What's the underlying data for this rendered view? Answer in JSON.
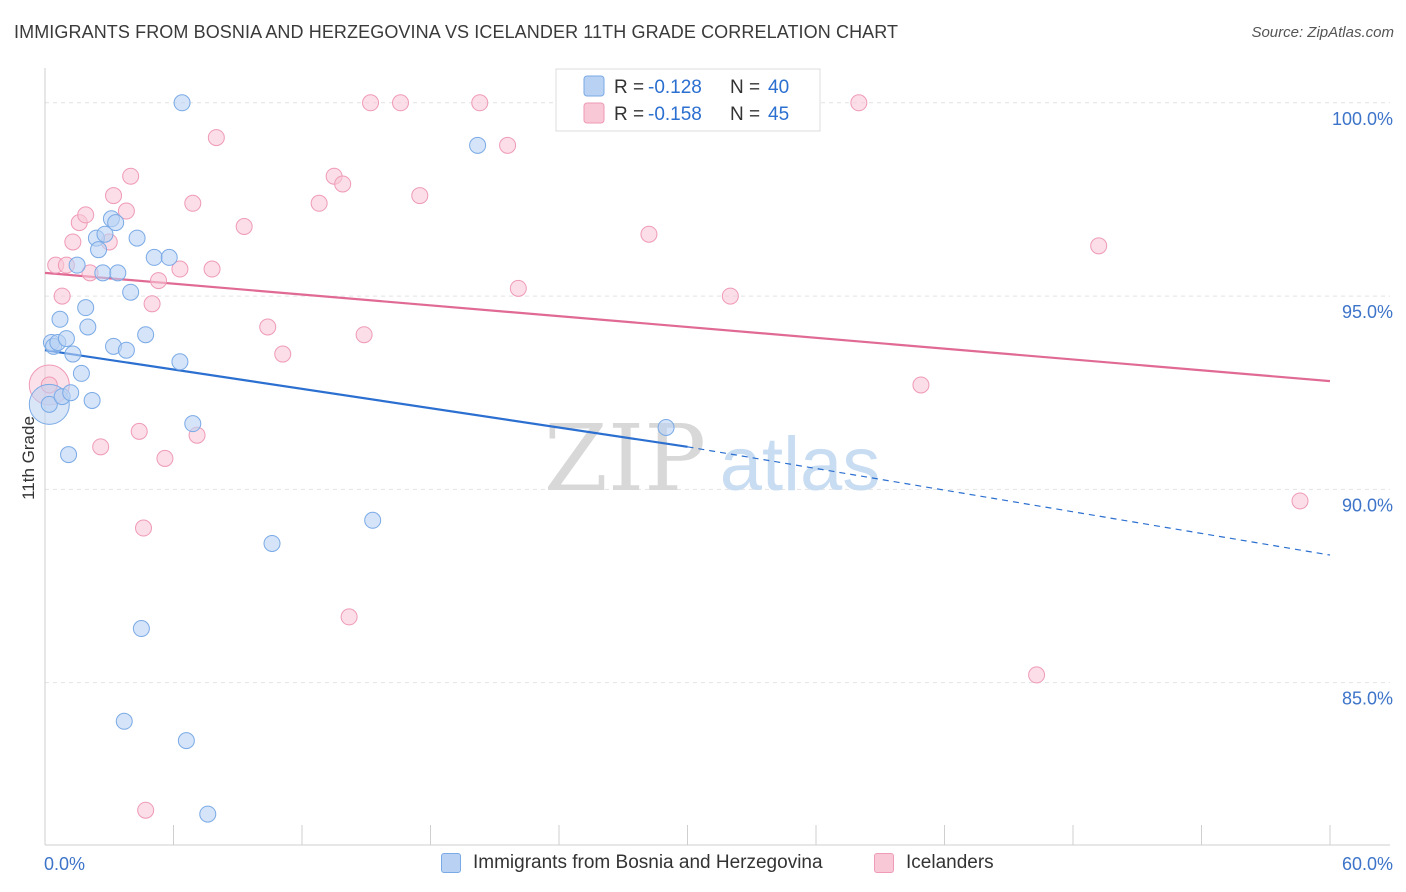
{
  "title": "IMMIGRANTS FROM BOSNIA AND HERZEGOVINA VS ICELANDER 11TH GRADE CORRELATION CHART",
  "source": "Source: ZipAtlas.com",
  "watermark": {
    "zip": "ZIP",
    "atlas": "atlas"
  },
  "chart_data": {
    "type": "scatter",
    "title": "IMMIGRANTS FROM BOSNIA AND HERZEGOVINA VS ICELANDER 11TH GRADE CORRELATION CHART",
    "xlabel": "",
    "ylabel": "11th Grade",
    "xlim": [
      0,
      60
    ],
    "ylim": [
      80.8,
      100.9
    ],
    "x_tick_labels": [
      {
        "value": 0,
        "label": "0.0%"
      },
      {
        "value": 60,
        "label": "60.0%"
      }
    ],
    "y_tick_labels": [
      {
        "value": 100,
        "label": "100.0%"
      },
      {
        "value": 95,
        "label": "95.0%"
      },
      {
        "value": 90,
        "label": "90.0%"
      },
      {
        "value": 85,
        "label": "85.0%"
      }
    ],
    "x_minor_ticks": [
      0,
      6,
      12,
      18,
      24,
      30,
      36,
      42,
      48,
      54,
      60
    ],
    "grid": true,
    "series": [
      {
        "name": "Immigrants from Bosnia and Herzegovina",
        "color": "#7aaae6",
        "fill": "#b9d2f3",
        "line_color": "#2b6fd0",
        "R": "-0.128",
        "N": "40",
        "trend": {
          "x0": 0,
          "y0": 93.6,
          "x1": 30.0,
          "y1": 91.1,
          "dash_to_x": 60,
          "dash_to_y": 88.3
        },
        "points": [
          [
            0.2,
            92.2
          ],
          [
            0.3,
            93.8
          ],
          [
            0.4,
            93.7
          ],
          [
            0.6,
            93.8
          ],
          [
            0.7,
            94.4
          ],
          [
            0.8,
            92.4
          ],
          [
            1.0,
            93.9
          ],
          [
            1.1,
            90.9
          ],
          [
            1.3,
            93.5
          ],
          [
            1.5,
            95.8
          ],
          [
            1.7,
            93.0
          ],
          [
            1.9,
            94.7
          ],
          [
            2.0,
            94.2
          ],
          [
            2.2,
            92.3
          ],
          [
            2.4,
            96.5
          ],
          [
            2.5,
            96.2
          ],
          [
            2.7,
            95.6
          ],
          [
            2.8,
            96.6
          ],
          [
            3.1,
            97.0
          ],
          [
            3.3,
            96.9
          ],
          [
            3.4,
            95.6
          ],
          [
            3.2,
            93.7
          ],
          [
            3.8,
            93.6
          ],
          [
            4.0,
            95.1
          ],
          [
            4.3,
            96.5
          ],
          [
            4.5,
            86.4
          ],
          [
            4.7,
            94.0
          ],
          [
            5.1,
            96.0
          ],
          [
            5.8,
            96.0
          ],
          [
            6.3,
            93.3
          ],
          [
            6.4,
            100.0
          ],
          [
            6.6,
            83.5
          ],
          [
            6.9,
            91.7
          ],
          [
            7.6,
            81.6
          ],
          [
            3.7,
            84.0
          ],
          [
            10.6,
            88.6
          ],
          [
            15.3,
            89.2
          ],
          [
            20.2,
            98.9
          ],
          [
            29.0,
            91.6
          ],
          [
            1.2,
            92.5
          ]
        ],
        "big_point": [
          0.2,
          92.2
        ]
      },
      {
        "name": "Icelanders",
        "color": "#ef9ab6",
        "fill": "#f8c8d7",
        "line_color": "#e06a94",
        "R": "-0.158",
        "N": "45",
        "trend": {
          "x0": 0,
          "y0": 95.6,
          "x1": 60,
          "y1": 92.8
        },
        "points": [
          [
            0.2,
            92.7
          ],
          [
            0.5,
            95.8
          ],
          [
            0.8,
            95.0
          ],
          [
            1.0,
            95.8
          ],
          [
            1.3,
            96.4
          ],
          [
            1.6,
            96.9
          ],
          [
            1.9,
            97.1
          ],
          [
            2.1,
            95.6
          ],
          [
            2.6,
            91.1
          ],
          [
            3.0,
            96.4
          ],
          [
            3.2,
            97.6
          ],
          [
            3.8,
            97.2
          ],
          [
            4.0,
            98.1
          ],
          [
            4.4,
            91.5
          ],
          [
            4.6,
            89.0
          ],
          [
            4.7,
            81.7
          ],
          [
            5.0,
            94.8
          ],
          [
            5.3,
            95.4
          ],
          [
            5.6,
            90.8
          ],
          [
            6.3,
            95.7
          ],
          [
            6.9,
            97.4
          ],
          [
            7.1,
            91.4
          ],
          [
            7.8,
            95.7
          ],
          [
            8.0,
            99.1
          ],
          [
            9.3,
            96.8
          ],
          [
            10.4,
            94.2
          ],
          [
            11.1,
            93.5
          ],
          [
            12.8,
            97.4
          ],
          [
            13.5,
            98.1
          ],
          [
            13.9,
            97.9
          ],
          [
            14.2,
            86.7
          ],
          [
            14.9,
            94.0
          ],
          [
            15.2,
            100.0
          ],
          [
            16.6,
            100.0
          ],
          [
            17.5,
            97.6
          ],
          [
            20.3,
            100.0
          ],
          [
            21.6,
            98.9
          ],
          [
            22.1,
            95.2
          ],
          [
            28.2,
            96.6
          ],
          [
            32.0,
            95.0
          ],
          [
            38.0,
            100.0
          ],
          [
            40.9,
            92.7
          ],
          [
            46.3,
            85.2
          ],
          [
            49.2,
            96.3
          ],
          [
            58.6,
            89.7
          ]
        ],
        "big_point": [
          0.2,
          92.7
        ]
      }
    ],
    "legend": {
      "position": "top-center",
      "rows": [
        {
          "r_label": "R = ",
          "r_value": "-0.128",
          "n_label": "N = ",
          "n_value": "40"
        },
        {
          "r_label": "R = ",
          "r_value": "-0.158",
          "n_label": "N = ",
          "n_value": "45"
        }
      ]
    }
  },
  "legend_bottom": [
    {
      "label": "Immigrants from Bosnia and Herzegovina"
    },
    {
      "label": "Icelanders"
    }
  ]
}
